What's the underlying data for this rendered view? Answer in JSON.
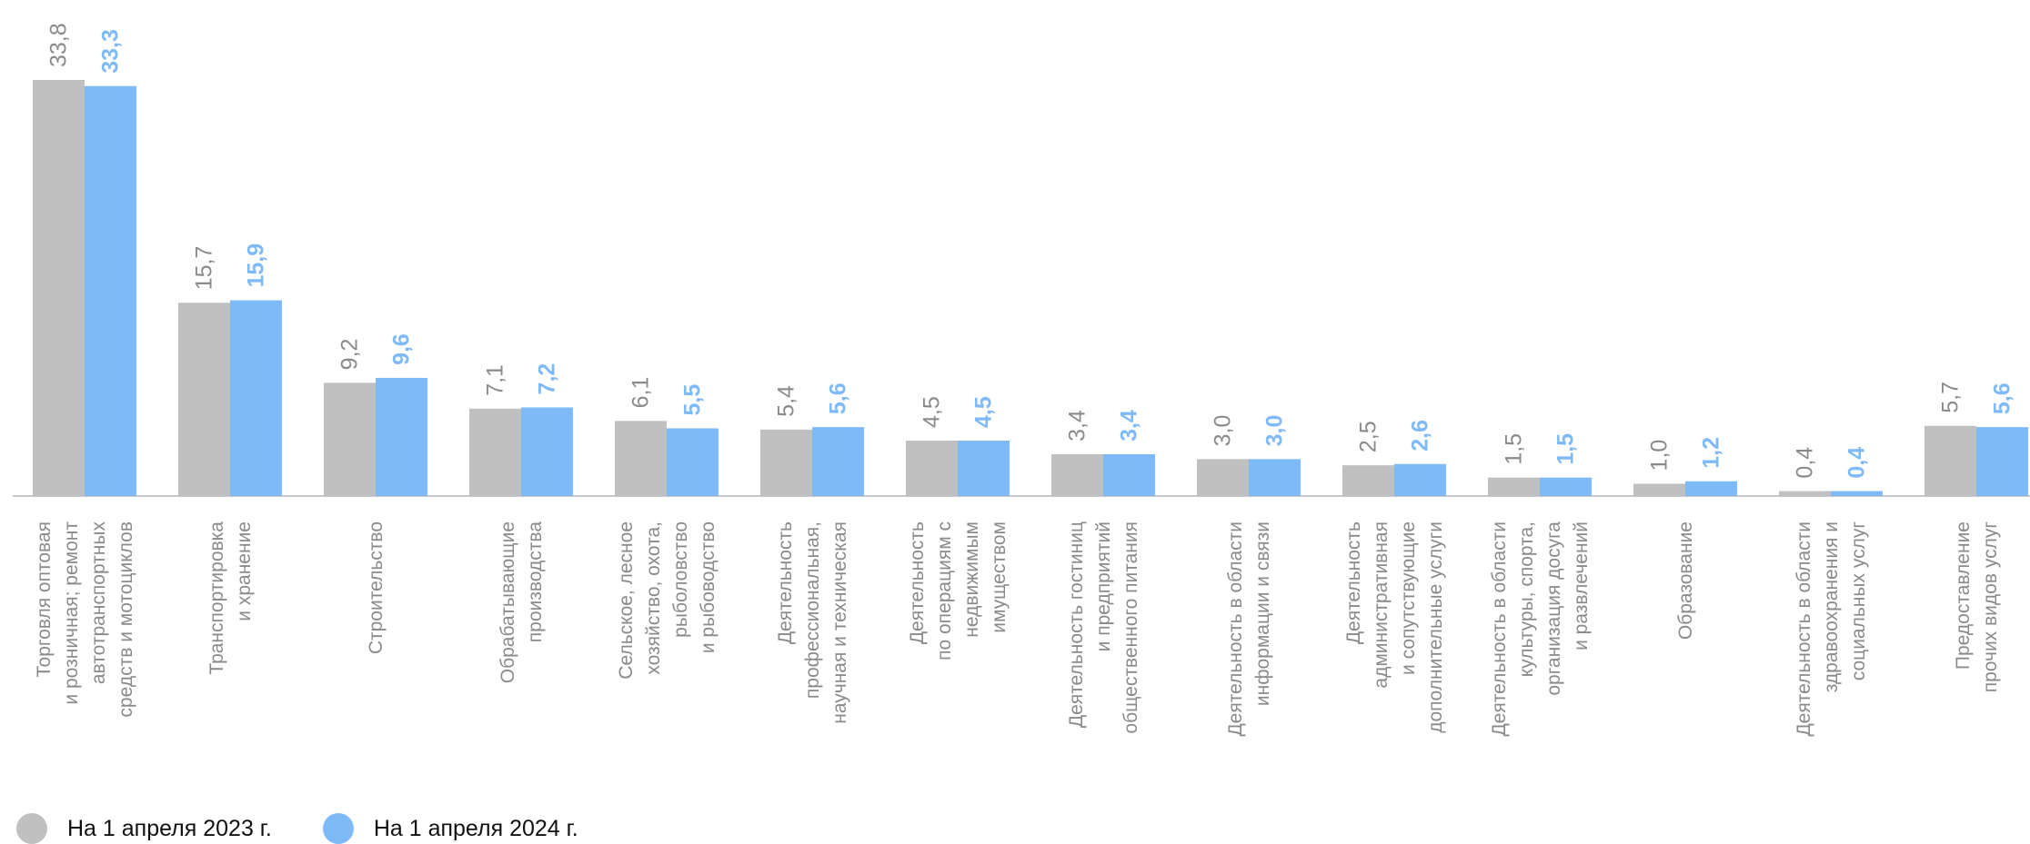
{
  "chart_data": {
    "type": "bar",
    "categories": [
      [
        "Торговля оптовая",
        "и розничная; ремонт",
        "автотранспортных",
        "средств и мотоциклов"
      ],
      [
        "Транспортировка",
        "и хранение"
      ],
      [
        "Строительство"
      ],
      [
        "Обрабатывающие",
        "производства"
      ],
      [
        "Сельское, лесное",
        "хозяйство, охота,",
        "рыболовство",
        "и рыбоводство"
      ],
      [
        "Деятельность",
        "профессиональная,",
        "научная и техническая"
      ],
      [
        "Деятельность",
        "по операциям с",
        "недвижимым",
        "имуществом"
      ],
      [
        "Деятельность гостиниц",
        "и предприятий",
        "общественного питания"
      ],
      [
        "Деятельность в области",
        "информации и связи"
      ],
      [
        "Деятельность",
        "административная",
        "и сопутствующие",
        "дополнительные услуги"
      ],
      [
        "Деятельность в области",
        "культуры, спорта,",
        "организация досуга",
        "и развлечений"
      ],
      [
        "Образование"
      ],
      [
        "Деятельность в области",
        "здравоохранения и",
        "социальных услуг"
      ],
      [
        "Предоставление",
        "прочих видов услуг"
      ]
    ],
    "series": [
      {
        "name": "На 1 апреля 2023 г.",
        "color": "#c0c0c0",
        "values": [
          33.8,
          15.7,
          9.2,
          7.1,
          6.1,
          5.4,
          4.5,
          3.4,
          3.0,
          2.5,
          1.5,
          1.0,
          0.4,
          5.7
        ],
        "labels": [
          "33,8",
          "15,7",
          "9,2",
          "7,1",
          "6,1",
          "5,4",
          "4,5",
          "3,4",
          "3,0",
          "2,5",
          "1,5",
          "1,0",
          "0,4",
          "5,7"
        ]
      },
      {
        "name": "На 1 апреля 2024 г.",
        "color": "#7fbaf8",
        "values": [
          33.3,
          15.9,
          9.6,
          7.2,
          5.5,
          5.6,
          4.5,
          3.4,
          3.0,
          2.6,
          1.5,
          1.2,
          0.4,
          5.6
        ],
        "labels": [
          "33,3",
          "15,9",
          "9,6",
          "7,2",
          "5,5",
          "5,6",
          "4,5",
          "3,4",
          "3,0",
          "2,6",
          "1,5",
          "1,2",
          "0,4",
          "5,6"
        ]
      }
    ],
    "ylim": [
      0,
      33.8
    ],
    "grid": false,
    "legend": "bottom-left",
    "colors": {
      "label_text": "#8a8a8a",
      "baseline": "#c8c8c8"
    }
  },
  "legend": {
    "items": [
      {
        "label": "На 1 апреля 2023 г.",
        "color": "#c0c0c0"
      },
      {
        "label": "На 1 апреля 2024 г.",
        "color": "#7fbaf8"
      }
    ]
  }
}
